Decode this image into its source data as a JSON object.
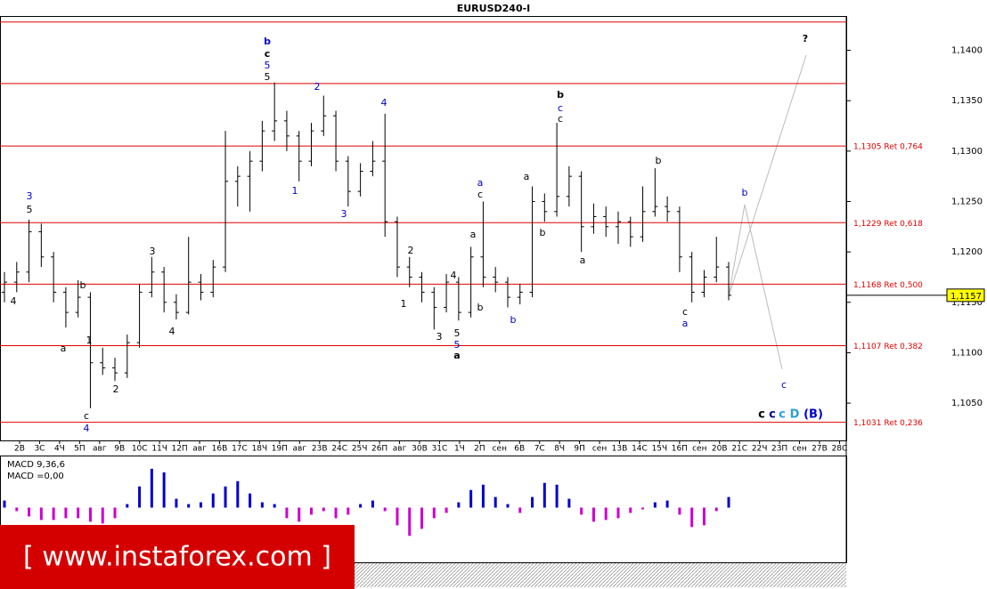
{
  "chart_data": {
    "type": "ohlc",
    "title": "EURUSD240-I",
    "categories": [
      "2В",
      "3С",
      "4Ч",
      "5П",
      "авг",
      "9В",
      "10С",
      "11Ч",
      "12П",
      "авг",
      "16В",
      "17С",
      "18Ч",
      "19П",
      "авг",
      "23В",
      "24С",
      "25Ч",
      "26П",
      "авг",
      "30В",
      "31С",
      "1Ч",
      "2П",
      "сен",
      "6В",
      "7С",
      "8Ч",
      "9П",
      "сен",
      "13В",
      "14С",
      "15Ч",
      "16П",
      "сен",
      "20В",
      "21С",
      "22Ч",
      "23П",
      "сен",
      "27В",
      "28С"
    ],
    "ohlc": [
      [
        1.116,
        1.118,
        1.115,
        1.117
      ],
      [
        1.117,
        1.119,
        1.116,
        1.118
      ],
      [
        1.118,
        1.1232,
        1.117,
        1.122
      ],
      [
        1.122,
        1.1228,
        1.1185,
        1.1195
      ],
      [
        1.1195,
        1.12,
        1.115,
        1.116
      ],
      [
        1.116,
        1.1165,
        1.1125,
        1.114
      ],
      [
        1.114,
        1.1172,
        1.1135,
        1.1155
      ],
      [
        1.1155,
        1.116,
        1.1045,
        1.109
      ],
      [
        1.109,
        1.1105,
        1.1078,
        1.1085
      ],
      [
        1.1085,
        1.1095,
        1.1072,
        1.108
      ],
      [
        1.108,
        1.1118,
        1.1075,
        1.111
      ],
      [
        1.111,
        1.1168,
        1.1105,
        1.116
      ],
      [
        1.116,
        1.1195,
        1.1155,
        1.118
      ],
      [
        1.118,
        1.1185,
        1.114,
        1.115
      ],
      [
        1.115,
        1.1158,
        1.1133,
        1.114
      ],
      [
        1.114,
        1.1215,
        1.1138,
        1.117
      ],
      [
        1.117,
        1.1178,
        1.1152,
        1.116
      ],
      [
        1.116,
        1.1192,
        1.1155,
        1.1185
      ],
      [
        1.1185,
        1.132,
        1.118,
        1.127
      ],
      [
        1.127,
        1.1285,
        1.1245,
        1.1275
      ],
      [
        1.1275,
        1.13,
        1.124,
        1.129
      ],
      [
        1.129,
        1.133,
        1.128,
        1.132
      ],
      [
        1.132,
        1.1368,
        1.131,
        1.133
      ],
      [
        1.133,
        1.134,
        1.13,
        1.1315
      ],
      [
        1.1315,
        1.132,
        1.127,
        1.129
      ],
      [
        1.129,
        1.1328,
        1.1285,
        1.132
      ],
      [
        1.132,
        1.1355,
        1.1315,
        1.1335
      ],
      [
        1.1335,
        1.134,
        1.128,
        1.129
      ],
      [
        1.129,
        1.1295,
        1.1245,
        1.126
      ],
      [
        1.126,
        1.1288,
        1.1255,
        1.128
      ],
      [
        1.128,
        1.131,
        1.1275,
        1.129
      ],
      [
        1.129,
        1.1337,
        1.1215,
        1.123
      ],
      [
        1.123,
        1.1235,
        1.1175,
        1.1185
      ],
      [
        1.1185,
        1.1195,
        1.1165,
        1.1175
      ],
      [
        1.1175,
        1.118,
        1.115,
        1.116
      ],
      [
        1.116,
        1.1165,
        1.1123,
        1.1145
      ],
      [
        1.1145,
        1.1178,
        1.114,
        1.117
      ],
      [
        1.117,
        1.1175,
        1.1132,
        1.114
      ],
      [
        1.114,
        1.1205,
        1.1135,
        1.1195
      ],
      [
        1.1195,
        1.125,
        1.1165,
        1.1175
      ],
      [
        1.1175,
        1.1185,
        1.116,
        1.117
      ],
      [
        1.117,
        1.1175,
        1.1145,
        1.1155
      ],
      [
        1.1155,
        1.1168,
        1.1148,
        1.116
      ],
      [
        1.116,
        1.1265,
        1.1155,
        1.125
      ],
      [
        1.125,
        1.1258,
        1.123,
        1.124
      ],
      [
        1.124,
        1.1328,
        1.1235,
        1.1255
      ],
      [
        1.1255,
        1.1285,
        1.1245,
        1.1275
      ],
      [
        1.1275,
        1.128,
        1.12,
        1.1225
      ],
      [
        1.1225,
        1.1248,
        1.1218,
        1.1235
      ],
      [
        1.1235,
        1.1245,
        1.1215,
        1.1225
      ],
      [
        1.1225,
        1.124,
        1.1208,
        1.123
      ],
      [
        1.123,
        1.1235,
        1.1205,
        1.1215
      ],
      [
        1.1215,
        1.1265,
        1.121,
        1.124
      ],
      [
        1.124,
        1.1283,
        1.1235,
        1.1245
      ],
      [
        1.1245,
        1.1255,
        1.123,
        1.124
      ],
      [
        1.124,
        1.1245,
        1.118,
        1.1195
      ],
      [
        1.1195,
        1.12,
        1.115,
        1.116
      ],
      [
        1.116,
        1.1182,
        1.1155,
        1.1175
      ],
      [
        1.1175,
        1.1215,
        1.117,
        1.1185
      ],
      [
        1.1185,
        1.119,
        1.1152,
        1.1157
      ]
    ],
    "color": "#000000",
    "ylim": [
      1.1013,
      1.1434
    ],
    "yticks": [
      {
        "value": 1.105,
        "label": "1,1050"
      },
      {
        "value": 1.11,
        "label": "1,1100"
      },
      {
        "value": 1.115,
        "label": "1,1150"
      },
      {
        "value": 1.12,
        "label": "1,1200"
      },
      {
        "value": 1.125,
        "label": "1,1250"
      },
      {
        "value": 1.13,
        "label": "1,1300"
      },
      {
        "value": 1.135,
        "label": "1,1350"
      },
      {
        "value": 1.14,
        "label": "1,1400"
      }
    ],
    "current_price": {
      "value": 1.1157,
      "label": "1,1157"
    },
    "levels": [
      {
        "value": 1.1305,
        "label": "1,1305 Ret 0,764"
      },
      {
        "value": 1.1229,
        "label": "1,1229 Ret 0,618"
      },
      {
        "value": 1.1168,
        "label": "1,1168 Ret 0,500"
      },
      {
        "value": 1.1107,
        "label": "1,1107 Ret 0,382"
      },
      {
        "value": 1.1031,
        "label": "1,1031 Ret 0,236"
      }
    ],
    "lines": [
      1.1428,
      1.1367
    ],
    "level_color": "#e00000",
    "annotations": [
      {
        "text": "3",
        "color": "#0000cc"
      },
      {
        "text": "5",
        "color": "#000000"
      },
      {
        "text": "4",
        "color": "#000000"
      },
      {
        "text": "a",
        "color": "#000000"
      },
      {
        "text": "b",
        "color": "#000000"
      },
      {
        "text": "1",
        "color": "#000000"
      },
      {
        "text": "4",
        "color": "#0000cc"
      },
      {
        "text": "c",
        "color": "#000000"
      },
      {
        "text": "2",
        "color": "#000000"
      },
      {
        "text": "3",
        "color": "#000000"
      },
      {
        "text": "4",
        "color": "#000000"
      },
      {
        "text": "b",
        "color": "#0000cc",
        "bold": true
      },
      {
        "text": "c",
        "color": "#000000",
        "bold": true
      },
      {
        "text": "5",
        "color": "#0000cc"
      },
      {
        "text": "5",
        "color": "#000000"
      },
      {
        "text": "2",
        "color": "#0000cc"
      },
      {
        "text": "1",
        "color": "#0000cc"
      },
      {
        "text": "4",
        "color": "#0000cc"
      },
      {
        "text": "3",
        "color": "#0000cc"
      },
      {
        "text": "2",
        "color": "#000000"
      },
      {
        "text": "1",
        "color": "#000000"
      },
      {
        "text": "3",
        "color": "#000000"
      },
      {
        "text": "5",
        "color": "#000000"
      },
      {
        "text": "5",
        "color": "#0000cc"
      },
      {
        "text": "a",
        "color": "#000000",
        "bold": true
      },
      {
        "text": "4",
        "color": "#000000"
      },
      {
        "text": "a",
        "color": "#000000"
      },
      {
        "text": "a",
        "color": "#0000cc"
      },
      {
        "text": "c",
        "color": "#000000"
      },
      {
        "text": "b",
        "color": "#000000"
      },
      {
        "text": "b",
        "color": "#0000cc"
      },
      {
        "text": "a",
        "color": "#000000"
      },
      {
        "text": "b",
        "color": "#000000"
      },
      {
        "text": "b",
        "color": "#000000",
        "bold": true
      },
      {
        "text": "c",
        "color": "#0000cc"
      },
      {
        "text": "c",
        "color": "#000000"
      },
      {
        "text": "a",
        "color": "#000000"
      },
      {
        "text": "b",
        "color": "#000000"
      },
      {
        "text": "c",
        "color": "#000000"
      },
      {
        "text": "a",
        "color": "#0000cc"
      },
      {
        "text": "b",
        "color": "#0000cc"
      },
      {
        "text": "c",
        "color": "#0000cc"
      },
      {
        "text": "?",
        "color": "#000000",
        "bold": true
      },
      {
        "text": "c",
        "color": "#000000",
        "bold": true
      },
      {
        "text": "c",
        "color": "#000080",
        "bold": true
      },
      {
        "text": "c",
        "color": "#2a9fd6",
        "bold": true
      },
      {
        "text": "D",
        "color": "#2a9fd6",
        "bold": true
      },
      {
        "text": "(B)",
        "color": "#0000cc",
        "bold": true
      }
    ],
    "macd": {
      "label": "MACD 9,36,6",
      "value_label": "MACD =0,00",
      "ylim": [
        -0.0031,
        0.0029
      ],
      "positive_color": "#0000cc",
      "negative_color": "#cc00cc",
      "values": [
        0.0004,
        -0.0002,
        -0.0005,
        -0.0007,
        -0.0007,
        -0.0006,
        -0.0006,
        -0.0008,
        -0.0009,
        -0.0006,
        0.0002,
        0.0012,
        0.0022,
        0.002,
        0.0005,
        0.0002,
        0.0003,
        0.0008,
        0.0012,
        0.0015,
        0.0008,
        0.0003,
        0.0002,
        -0.0006,
        -0.0008,
        -0.0004,
        -0.0002,
        -0.0006,
        -0.0004,
        0.0002,
        0.0004,
        -0.0002,
        -0.001,
        -0.0016,
        -0.0012,
        -0.0006,
        -0.0003,
        0.0003,
        0.001,
        0.0013,
        0.0006,
        0.0002,
        -0.0003,
        0.0006,
        0.0014,
        0.0013,
        0.0005,
        -0.0004,
        -0.0008,
        -0.0007,
        -0.0006,
        -0.0003,
        -0.0001,
        0.0003,
        0.0004,
        -0.0004,
        -0.0011,
        -0.001,
        -0.0002,
        0.0006
      ]
    },
    "watermark": "[ www.instaforex.com ]"
  }
}
